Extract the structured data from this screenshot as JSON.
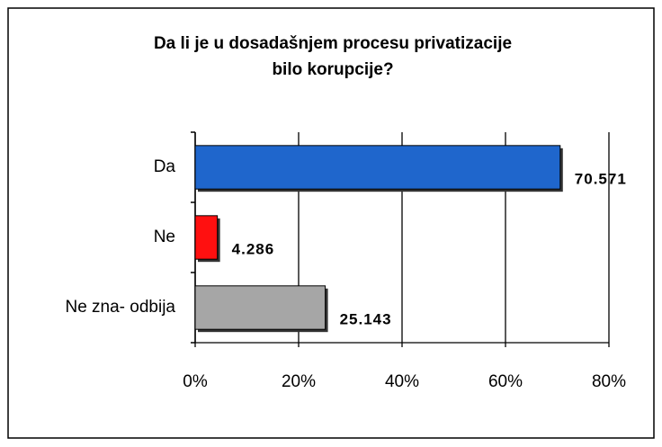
{
  "chart_data": {
    "type": "bar",
    "orientation": "horizontal",
    "title": [
      "Da li je u dosadašnjem procesu privatizacije",
      "bilo korupcije?"
    ],
    "categories": [
      "Da",
      "Ne",
      "Ne zna- odbija"
    ],
    "values": [
      70.571,
      4.286,
      25.143
    ],
    "colors": [
      "#1f66cc",
      "#ff1010",
      "#a6a6a6"
    ],
    "xlim": [
      0,
      80
    ],
    "xticks": [
      {
        "value": 0,
        "label": "0%"
      },
      {
        "value": 20,
        "label": "20%"
      },
      {
        "value": 40,
        "label": "40%"
      },
      {
        "value": 60,
        "label": "60%"
      },
      {
        "value": 80,
        "label": "80%"
      }
    ],
    "grid": true
  }
}
